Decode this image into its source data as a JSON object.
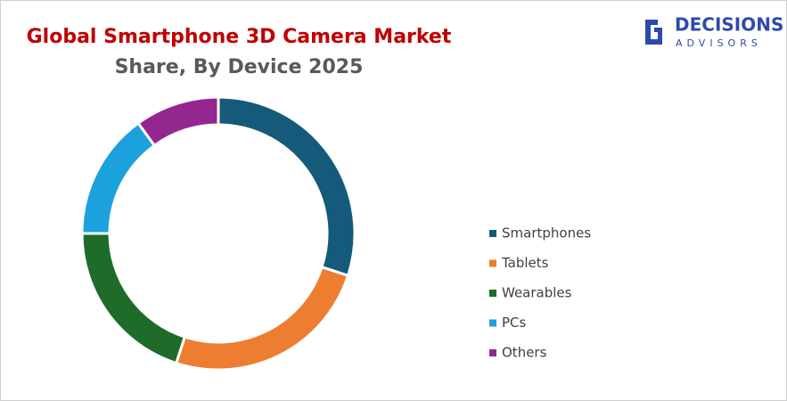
{
  "logo": {
    "name": "DECISIONS",
    "tagline": "ADVISORS"
  },
  "chart_data": {
    "type": "donut",
    "title": "Global Smartphone 3D Camera Market",
    "subtitle": "Share, By Device 2025",
    "categories": [
      "Smartphones",
      "Tablets",
      "Wearables",
      "PCs",
      "Others"
    ],
    "values": [
      30,
      25,
      20,
      15,
      10
    ],
    "colors": [
      "#155a7a",
      "#ed7d31",
      "#1e6b2a",
      "#1ba1dc",
      "#93278f"
    ],
    "legend": "right"
  }
}
